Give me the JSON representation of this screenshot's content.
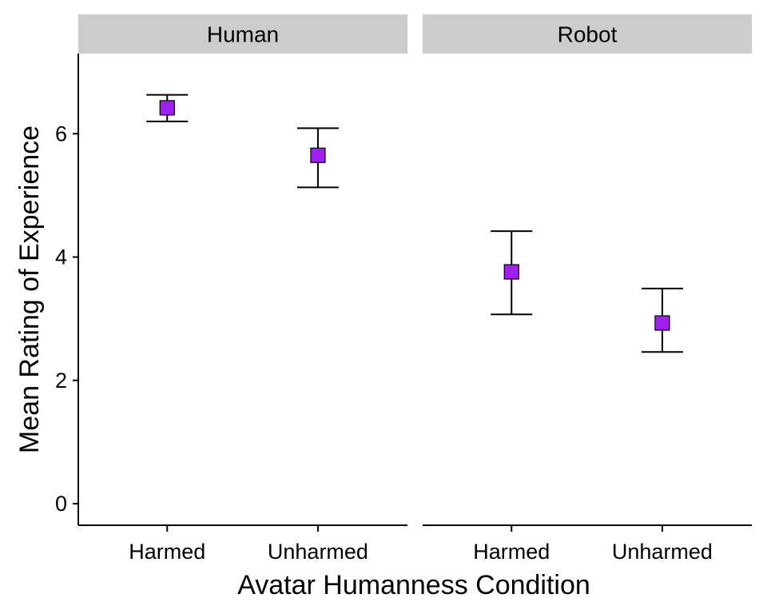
{
  "chart_data": {
    "type": "scatter",
    "xlabel": "Avatar Humanness Condition",
    "ylabel": "Mean Rating of Experience",
    "ylim": [
      -0.35,
      7.3
    ],
    "yticks": [
      0,
      2,
      4,
      6
    ],
    "categories": [
      "Harmed",
      "Unharmed"
    ],
    "point_color": "#a020f0",
    "grid": false,
    "facets": [
      {
        "label": "Human",
        "points": [
          {
            "x": "Harmed",
            "y": 6.42,
            "ymin": 6.2,
            "ymax": 6.63
          },
          {
            "x": "Unharmed",
            "y": 5.65,
            "ymin": 5.13,
            "ymax": 6.09
          }
        ]
      },
      {
        "label": "Robot",
        "points": [
          {
            "x": "Harmed",
            "y": 3.76,
            "ymin": 3.07,
            "ymax": 4.42
          },
          {
            "x": "Unharmed",
            "y": 2.93,
            "ymin": 2.46,
            "ymax": 3.49
          }
        ]
      }
    ]
  }
}
